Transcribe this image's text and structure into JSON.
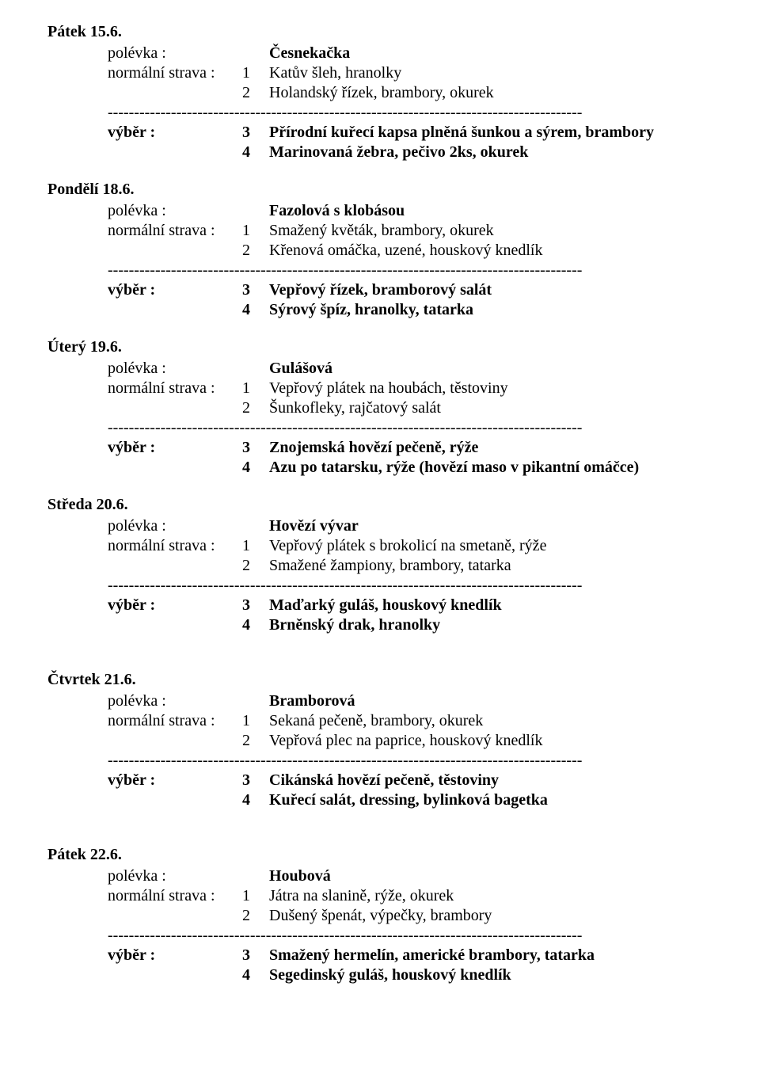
{
  "labels": {
    "soup": "polévka :",
    "normal": "normální strava :",
    "vyber": "výběr :"
  },
  "divider_chars": "------------------------------------------------------------------------------------------",
  "days": [
    {
      "date": "Pátek 15.6.",
      "soup": "Česnekačka",
      "normal": [
        {
          "n": "1",
          "t": "Katův šleh, hranolky"
        },
        {
          "n": "2",
          "t": "Holandský řízek, brambory, okurek"
        }
      ],
      "vyber": [
        {
          "n": "3",
          "t": "Přírodní kuřecí kapsa plněná šunkou a sýrem, brambory"
        },
        {
          "n": "4",
          "t": "Marinovaná žebra, pečivo 2ks, okurek"
        }
      ],
      "extra_gap": false
    },
    {
      "date": "Pondělí 18.6.",
      "soup": "Fazolová s klobásou",
      "normal": [
        {
          "n": "1",
          "t": "Smažený květák, brambory, okurek"
        },
        {
          "n": "2",
          "t": "Křenová omáčka, uzené, houskový knedlík"
        }
      ],
      "vyber": [
        {
          "n": "3",
          "t": "Vepřový řízek, bramborový salát"
        },
        {
          "n": "4",
          "t": "Sýrový špíz, hranolky, tatarka"
        }
      ],
      "extra_gap": false
    },
    {
      "date": "Úterý 19.6.",
      "soup": "Gulášová",
      "normal": [
        {
          "n": "1",
          "t": "Vepřový plátek na houbách, těstoviny"
        },
        {
          "n": "2",
          "t": "Šunkofleky, rajčatový salát"
        }
      ],
      "vyber": [
        {
          "n": "3",
          "t": "Znojemská hovězí pečeně, rýže"
        },
        {
          "n": "4",
          "t": "Azu po tatarsku, rýže (hovězí maso v pikantní omáčce)"
        }
      ],
      "extra_gap": false
    },
    {
      "date": "Středa 20.6.",
      "soup": "Hovězí vývar",
      "normal": [
        {
          "n": "1",
          "t": "Vepřový plátek s brokolicí na smetaně, rýže"
        },
        {
          "n": "2",
          "t": "Smažené žampiony, brambory, tatarka"
        }
      ],
      "vyber": [
        {
          "n": "3",
          "t": "Maďarký guláš, houskový knedlík"
        },
        {
          "n": "4",
          "t": "Brněnský drak, hranolky"
        }
      ],
      "extra_gap": false
    },
    {
      "date": "Čtvrtek 21.6.",
      "soup": "Bramborová",
      "normal": [
        {
          "n": "1",
          "t": "Sekaná pečeně, brambory, okurek"
        },
        {
          "n": "2",
          "t": "Vepřová plec na paprice, houskový knedlík"
        }
      ],
      "vyber": [
        {
          "n": "3",
          "t": "Cikánská hovězí pečeně, těstoviny"
        },
        {
          "n": "4",
          "t": "Kuřecí  salát, dressing, bylinková bagetka"
        }
      ],
      "extra_gap": true
    },
    {
      "date": "Pátek 22.6.",
      "soup": "Houbová",
      "normal": [
        {
          "n": "1",
          "t": "Játra na slanině, rýže, okurek"
        },
        {
          "n": "2",
          "t": "Dušený špenát, výpečky, brambory"
        }
      ],
      "vyber": [
        {
          "n": "3",
          "t": "Smažený hermelín, americké brambory, tatarka"
        },
        {
          "n": "4",
          "t": "Segedinský guláš, houskový knedlík"
        }
      ],
      "extra_gap": true
    }
  ]
}
